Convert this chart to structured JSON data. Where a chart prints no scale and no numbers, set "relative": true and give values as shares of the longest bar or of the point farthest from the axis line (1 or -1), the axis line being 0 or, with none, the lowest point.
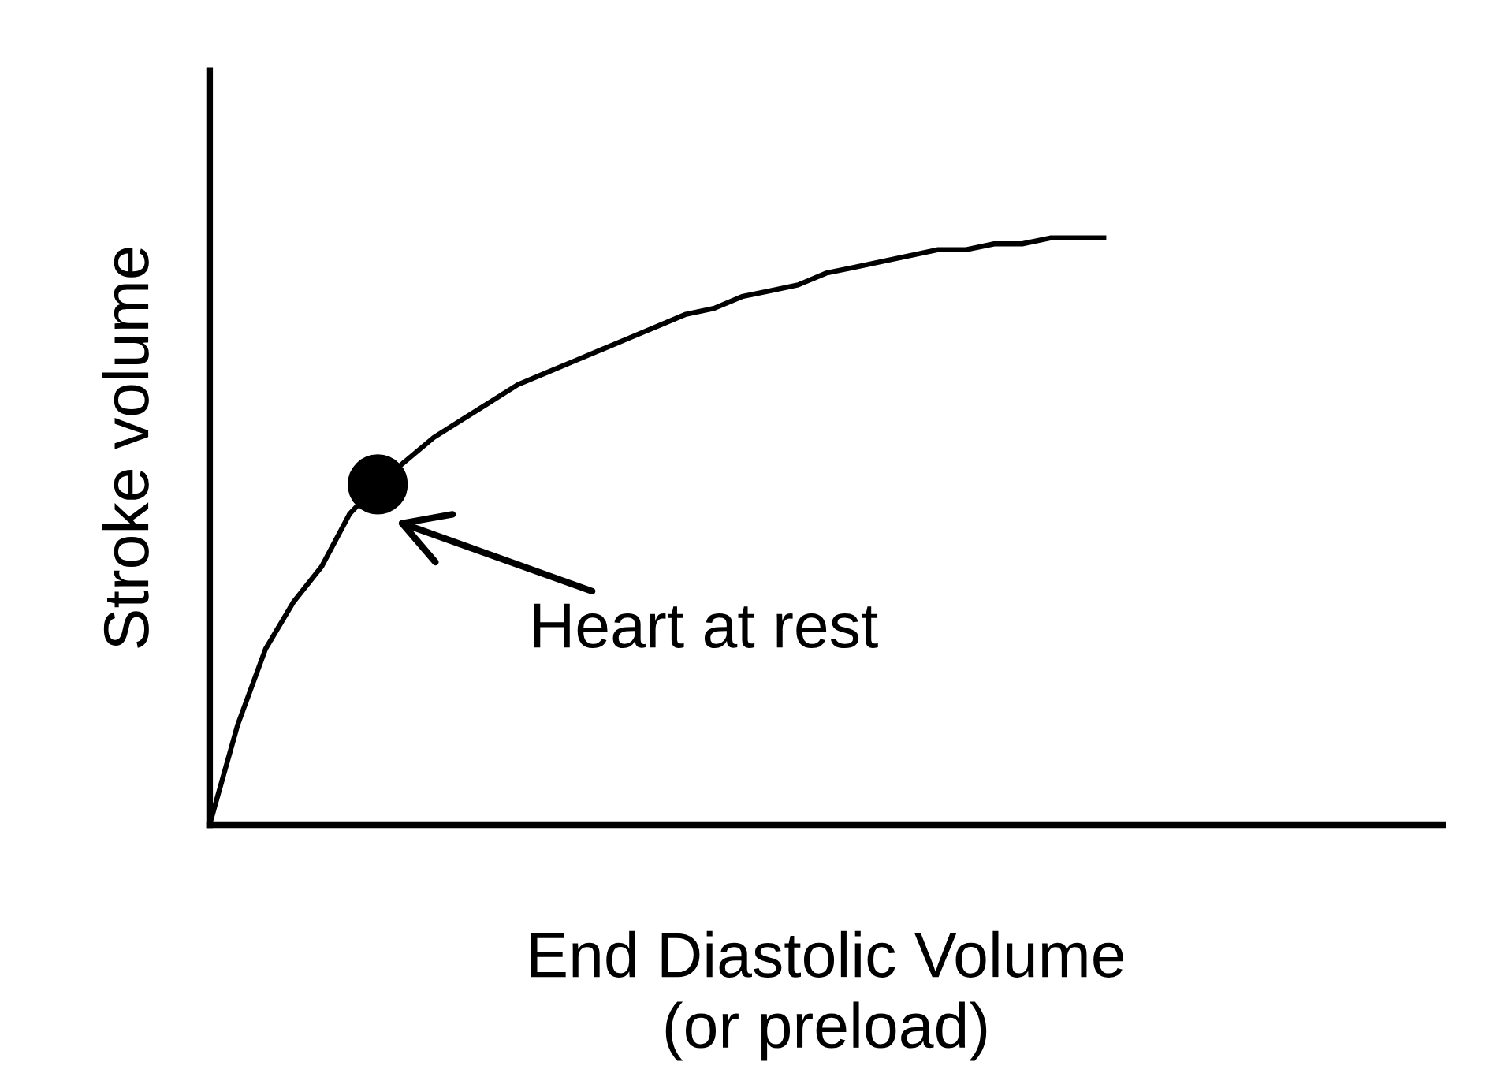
{
  "chart_data": {
    "type": "line",
    "relative": true,
    "xlabel": "End Diastolic Volume\n(or preload)",
    "ylabel": "Stroke volume",
    "categories": [
      null,
      null,
      null,
      null,
      null,
      null,
      null,
      null,
      null,
      null,
      null,
      null,
      null,
      null,
      null,
      null,
      null,
      null,
      null,
      null,
      null,
      null,
      null,
      null,
      null,
      null,
      null,
      null,
      null,
      null,
      null,
      null,
      null,
      null,
      null,
      null,
      null,
      null,
      null,
      null,
      null,
      null,
      null,
      null,
      null
    ],
    "series": [
      {
        "color": "#000000",
        "values": [
          0,
          0.17,
          0.3,
          0.38,
          0.44,
          0.53,
          0.58,
          0.62,
          0.66,
          0.69,
          0.72,
          0.75,
          0.77,
          0.79,
          0.81,
          0.83,
          0.85,
          0.87,
          0.88,
          0.9,
          0.91,
          0.92,
          0.94,
          0.95,
          0.96,
          0.97,
          0.98,
          0.98,
          0.99,
          0.99,
          1.0,
          1.0,
          1.0,
          null,
          null,
          null,
          null,
          null,
          null,
          null,
          null,
          null,
          null,
          null,
          null
        ]
      }
    ],
    "annotations": [
      "Heart at rest"
    ],
    "grid": false,
    "legend": false
  }
}
